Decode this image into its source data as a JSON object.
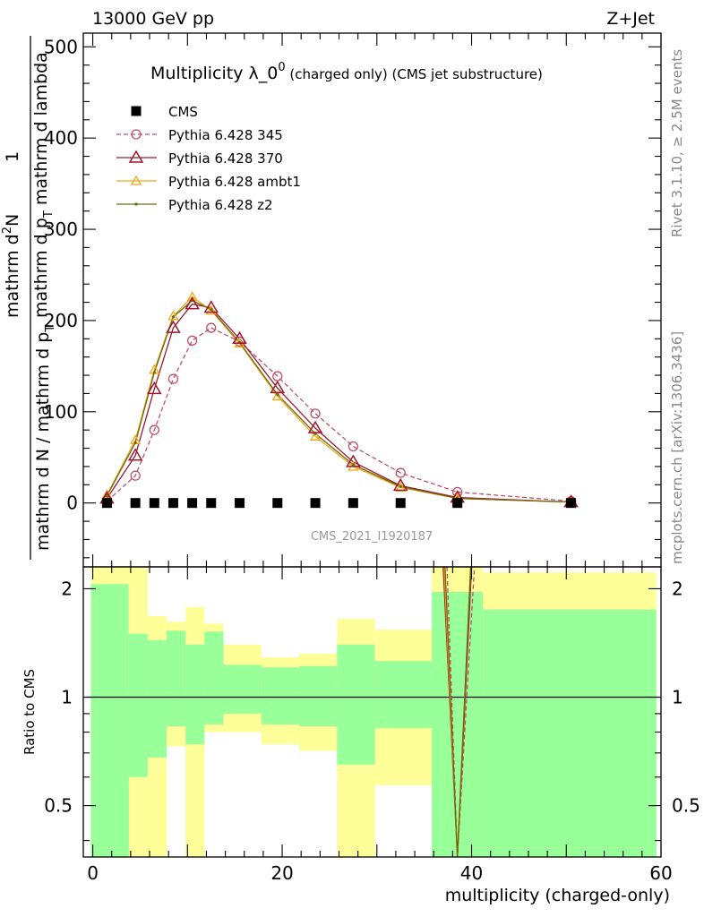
{
  "header": {
    "left": "13000 GeV pp",
    "right": "Z+Jet"
  },
  "side_labels": {
    "top": "Rivet 3.1.10, ≥ 2.5M events",
    "bottom": "mcplots.cern.ch [arXiv:1306.3436]"
  },
  "watermark": "CMS_2021_I1920187",
  "colors": {
    "cms": "#000000",
    "p345": "#c0506a",
    "p370": "#a0182f",
    "ambt1": "#f0a818",
    "z2": "#6b6b10",
    "band_inner": "#99ff99",
    "band_outer": "#ffff99"
  },
  "chart_data": [
    {
      "type": "line",
      "title": "Multiplicity λ_0",
      "title_sup": "0",
      "title_sub": "(charged only) (CMS jet substructure)",
      "ylabel_top": "1",
      "ylabel_bottom": "mathrm d N / mathrm d p",
      "ylabel_bottom_sub": "T",
      "ylabel_top2": "mathrm d",
      "ylabel_top2_sup": "2",
      "ylabel_top3": "N",
      "ylabel_top4": "mathrm d p",
      "ylabel_top4_sub": "T",
      "ylabel_top5": "mathrm d lambda",
      "xlim": [
        -1,
        60
      ],
      "ylim": [
        -70,
        515
      ],
      "yticks": [
        0,
        100,
        200,
        300,
        400,
        500
      ],
      "legend_position": "top-left",
      "series": [
        {
          "name": "CMS",
          "key": "cms",
          "marker": "square",
          "x": [
            1.5,
            4.5,
            6.5,
            8.5,
            10.5,
            12.5,
            15.5,
            19.5,
            23.5,
            27.5,
            32.5,
            38.5,
            50.5
          ],
          "y": [
            0,
            0,
            0,
            0,
            0,
            0,
            0,
            0,
            0,
            0,
            0,
            0,
            0
          ]
        },
        {
          "name": "Pythia 6.428 345",
          "key": "p345",
          "marker": "circle",
          "dashed": true,
          "x": [
            1.5,
            4.5,
            6.5,
            8.5,
            10.5,
            12.5,
            15.5,
            19.5,
            23.5,
            27.5,
            32.5,
            38.5,
            50.5
          ],
          "y": [
            2,
            30,
            80,
            136,
            178,
            192,
            177,
            139,
            98,
            62,
            33,
            12,
            2
          ]
        },
        {
          "name": "Pythia 6.428 370",
          "key": "p370",
          "marker": "triangle",
          "x": [
            1.5,
            4.5,
            6.5,
            8.5,
            10.5,
            12.5,
            15.5,
            19.5,
            23.5,
            27.5,
            32.5,
            38.5,
            50.5
          ],
          "y": [
            5,
            52,
            125,
            192,
            218,
            214,
            180,
            126,
            82,
            45,
            19,
            6,
            1
          ]
        },
        {
          "name": "Pythia 6.428 ambt1",
          "key": "ambt1",
          "marker": "triangle-small",
          "x": [
            1.5,
            4.5,
            6.5,
            8.5,
            10.5,
            12.5,
            15.5,
            19.5,
            23.5,
            27.5,
            32.5,
            38.5,
            50.5
          ],
          "y": [
            9,
            69,
            146,
            205,
            226,
            211,
            175,
            117,
            73,
            40,
            17,
            5,
            1
          ]
        },
        {
          "name": "Pythia 6.428 z2",
          "key": "z2",
          "marker": "dot",
          "x": [
            1.5,
            4.5,
            6.5,
            8.5,
            10.5,
            12.5,
            15.5,
            19.5,
            23.5,
            27.5,
            32.5,
            38.5,
            50.5
          ],
          "y": [
            8,
            66,
            143,
            204,
            222,
            212,
            176,
            119,
            76,
            42,
            18,
            5,
            1
          ]
        }
      ]
    },
    {
      "type": "area",
      "ylabel": "Ratio to CMS",
      "xlabel": "multiplicity (charged-only)",
      "xlim": [
        -1,
        60
      ],
      "ylim": [
        0.36,
        2.3
      ],
      "yticks": [
        0.5,
        1,
        2
      ],
      "xticks": [
        0,
        20,
        40,
        60
      ],
      "bands": {
        "edges": [
          -0.2,
          3.8,
          5.8,
          7.8,
          9.8,
          11.8,
          13.8,
          17.8,
          21.8,
          25.8,
          29.8,
          35.8,
          41.2,
          59.5
        ],
        "inner_lo": [
          0.36,
          0.36,
          0.36,
          0.36,
          0.36,
          0.36,
          0.36,
          0.36,
          0.36,
          0.36,
          0.36,
          0.36,
          0.36
        ],
        "inner_hi": [
          2.06,
          1.5,
          1.44,
          1.53,
          1.4,
          1.52,
          1.23,
          1.21,
          1.22,
          1.4,
          1.26,
          1.96,
          1.75
        ],
        "outer_lo": [
          0.36,
          0.6,
          0.68,
          0.36,
          0.36,
          0.36,
          0.8,
          0.74,
          0.71,
          0.36,
          0.36,
          0.36,
          0.36
        ],
        "outer_hi": [
          2.3,
          2.3,
          1.68,
          1.62,
          1.78,
          1.6,
          1.4,
          1.29,
          1.32,
          1.65,
          1.54,
          2.3,
          2.22
        ],
        "white_lo": [
          0.36,
          0.36,
          0.36,
          0.36,
          0.36,
          0.36,
          0.36,
          0.36,
          0.36,
          0.36,
          0.36,
          0.36,
          0.36
        ],
        "yellow_lo": [
          2.06,
          1.5,
          1.44,
          1.53,
          1.4,
          1.52,
          1.23,
          1.21,
          1.22,
          1.4,
          1.26,
          1.96,
          1.75
        ]
      },
      "ratio_lines": [
        {
          "key": "p345",
          "dashed": true,
          "x": [
            37.4,
            38.5,
            40.3
          ],
          "y": [
            2.3,
            0.36,
            2.3
          ]
        },
        {
          "key": "p370",
          "x": [
            37.0,
            38.5,
            40.0
          ],
          "y": [
            2.3,
            0.36,
            2.3
          ]
        },
        {
          "key": "ambt1",
          "x": [
            37.1,
            38.5,
            39.9
          ],
          "y": [
            2.3,
            0.36,
            2.3
          ]
        },
        {
          "key": "z2",
          "x": [
            37.2,
            38.5,
            39.9
          ],
          "y": [
            2.3,
            0.36,
            2.3
          ]
        }
      ]
    }
  ]
}
